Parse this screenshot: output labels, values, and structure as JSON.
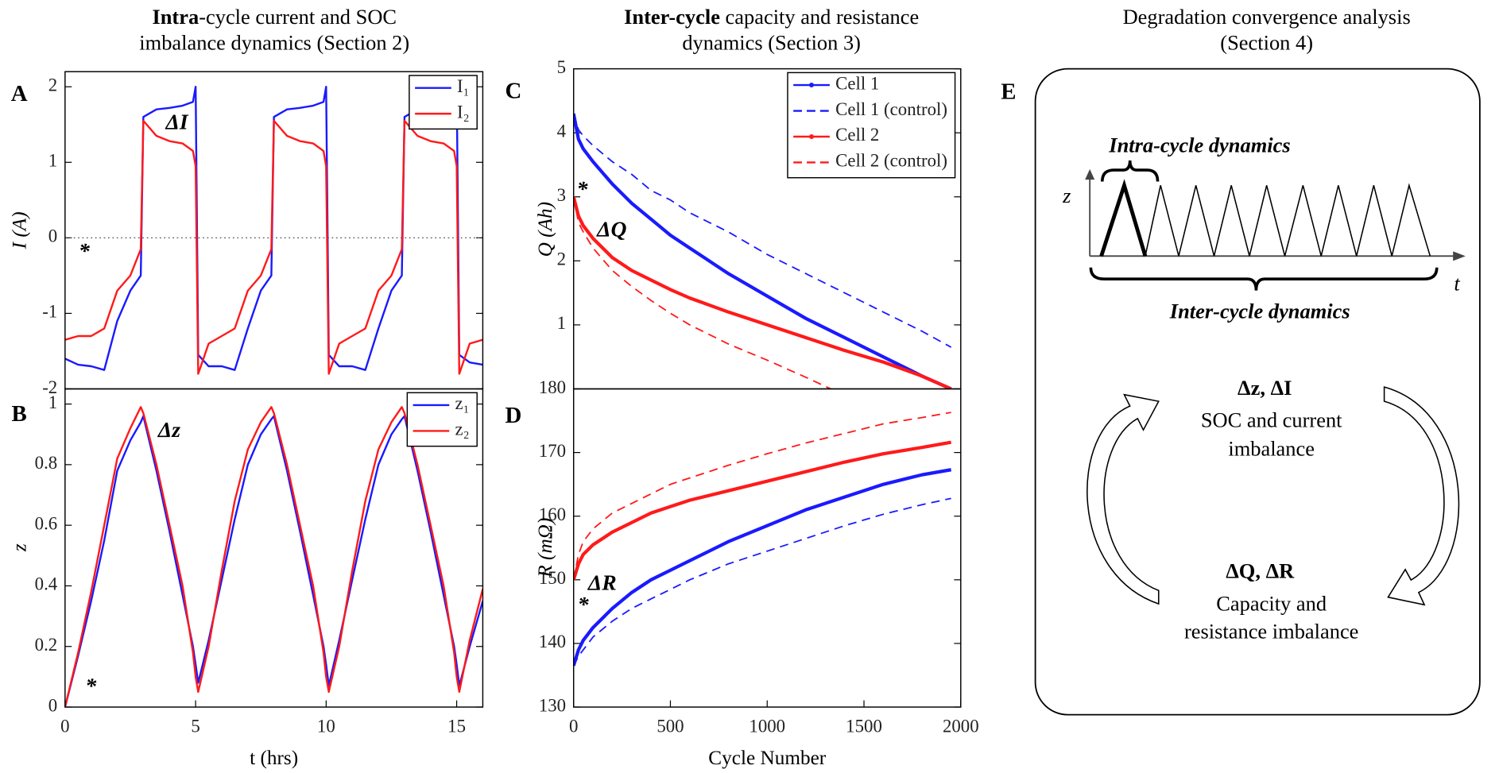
{
  "headers": [
    {
      "bold": "Intra",
      "rest": "-cycle current and SOC",
      "line2": "imbalance dynamics (Section 2)"
    },
    {
      "bold": "Inter-cycle",
      "rest": " capacity and resistance",
      "line2": "dynamics (Section 3)"
    },
    {
      "rest": "Degradation convergence analysis",
      "line2": "(Section 4)"
    }
  ],
  "chart_data": [
    {
      "panel": "A",
      "type": "line",
      "ylabel": "I (A)",
      "x": [
        0,
        0.5,
        1,
        1.5,
        2,
        2.5,
        2.9,
        3,
        3.5,
        4,
        4.5,
        4.9,
        5,
        5.1,
        5.5,
        6,
        6.5,
        7,
        7.5,
        7.9,
        8,
        8.5,
        9,
        9.5,
        9.9,
        10,
        10.1,
        10.5,
        11,
        11.5,
        12,
        12.5,
        12.9,
        13,
        13.5,
        14,
        14.5,
        14.9,
        15,
        15.1,
        15.5,
        16
      ],
      "series": [
        {
          "name": "I₁",
          "color": "#1a1aff",
          "linestyle": "solid",
          "linewidth": 2,
          "values": [
            -1.6,
            -1.68,
            -1.7,
            -1.75,
            -1.1,
            -0.7,
            -0.5,
            1.6,
            1.7,
            1.72,
            1.75,
            1.8,
            2.0,
            -1.55,
            -1.7,
            -1.7,
            -1.75,
            -1.2,
            -0.7,
            -0.5,
            1.6,
            1.7,
            1.72,
            1.75,
            1.8,
            2.0,
            -1.55,
            -1.7,
            -1.7,
            -1.75,
            -1.2,
            -0.7,
            -0.5,
            1.6,
            1.7,
            1.72,
            1.75,
            1.8,
            2.0,
            -1.55,
            -1.65,
            -1.68
          ]
        },
        {
          "name": "I₂",
          "color": "#ff1a1a",
          "linestyle": "solid",
          "linewidth": 2,
          "values": [
            -1.35,
            -1.3,
            -1.3,
            -1.2,
            -0.7,
            -0.5,
            -0.15,
            1.55,
            1.35,
            1.28,
            1.25,
            1.15,
            0.95,
            -1.8,
            -1.4,
            -1.3,
            -1.2,
            -0.7,
            -0.5,
            -0.15,
            1.55,
            1.35,
            1.28,
            1.25,
            1.15,
            0.95,
            -1.8,
            -1.4,
            -1.3,
            -1.2,
            -0.7,
            -0.5,
            -0.15,
            1.55,
            1.35,
            1.28,
            1.25,
            1.15,
            0.95,
            -1.8,
            -1.4,
            -1.35
          ]
        }
      ],
      "xlim": [
        0,
        16
      ],
      "ylim": [
        -2,
        2.2
      ],
      "yticks": [
        -2,
        -1,
        0,
        1,
        2
      ],
      "reference_line": 0,
      "legend": "upper right",
      "annotations": [
        "ΔI",
        "*"
      ]
    },
    {
      "panel": "B",
      "type": "line",
      "ylabel": "z",
      "xlabel": "t (hrs)",
      "x": [
        0,
        0.5,
        1,
        1.5,
        2,
        2.5,
        2.9,
        3,
        3.5,
        4,
        4.5,
        4.9,
        5,
        5.1,
        5.5,
        6,
        6.5,
        7,
        7.5,
        7.9,
        8,
        8.5,
        9,
        9.5,
        9.9,
        10,
        10.1,
        10.5,
        11,
        11.5,
        12,
        12.5,
        12.9,
        13,
        13.5,
        14,
        14.5,
        14.9,
        15,
        15.1,
        15.5,
        16
      ],
      "series": [
        {
          "name": "z₁",
          "color": "#1a1aff",
          "linestyle": "solid",
          "linewidth": 2,
          "values": [
            0,
            0.17,
            0.35,
            0.55,
            0.78,
            0.88,
            0.94,
            0.96,
            0.78,
            0.58,
            0.37,
            0.2,
            0.14,
            0.08,
            0.22,
            0.42,
            0.62,
            0.8,
            0.9,
            0.95,
            0.96,
            0.78,
            0.58,
            0.37,
            0.2,
            0.14,
            0.07,
            0.22,
            0.42,
            0.62,
            0.8,
            0.9,
            0.95,
            0.96,
            0.78,
            0.58,
            0.37,
            0.2,
            0.14,
            0.07,
            0.2,
            0.35
          ]
        },
        {
          "name": "z₂",
          "color": "#ff1a1a",
          "linestyle": "solid",
          "linewidth": 2,
          "values": [
            0,
            0.18,
            0.38,
            0.6,
            0.82,
            0.92,
            0.99,
            0.97,
            0.8,
            0.6,
            0.4,
            0.18,
            0.1,
            0.05,
            0.2,
            0.45,
            0.68,
            0.85,
            0.94,
            0.99,
            0.97,
            0.8,
            0.6,
            0.4,
            0.18,
            0.1,
            0.05,
            0.2,
            0.45,
            0.68,
            0.85,
            0.94,
            0.99,
            0.97,
            0.8,
            0.6,
            0.4,
            0.18,
            0.1,
            0.05,
            0.22,
            0.39
          ]
        }
      ],
      "xlim": [
        0,
        16
      ],
      "xticks": [
        0,
        5,
        10,
        15
      ],
      "ylim": [
        0,
        1.05
      ],
      "yticks": [
        0,
        0.2,
        0.4,
        0.6,
        0.8,
        1
      ],
      "legend": "upper right",
      "annotations": [
        "Δz",
        "*"
      ]
    },
    {
      "panel": "C",
      "type": "line",
      "ylabel": "Q (Ah)",
      "x": [
        0,
        25,
        50,
        100,
        200,
        300,
        400,
        500,
        600,
        800,
        1000,
        1200,
        1400,
        1600,
        1800,
        1950
      ],
      "series": [
        {
          "name": "Cell 1",
          "color": "#1a1aff",
          "linestyle": "solid",
          "linewidth": 3.5,
          "marker": "dot",
          "values": [
            4.3,
            3.9,
            3.75,
            3.55,
            3.2,
            2.9,
            2.65,
            2.4,
            2.2,
            1.8,
            1.45,
            1.1,
            0.8,
            0.5,
            0.2,
            0.0
          ]
        },
        {
          "name": "Cell 1 (control)",
          "color": "#1a1aff",
          "linestyle": "dashed",
          "linewidth": 1.5,
          "values": [
            4.3,
            4.05,
            3.95,
            3.8,
            3.55,
            3.35,
            3.1,
            2.95,
            2.75,
            2.45,
            2.1,
            1.8,
            1.5,
            1.2,
            0.9,
            0.65
          ]
        },
        {
          "name": "Cell 2",
          "color": "#ff1a1a",
          "linestyle": "solid",
          "linewidth": 3.5,
          "marker": "dot",
          "values": [
            3.0,
            2.7,
            2.55,
            2.35,
            2.05,
            1.85,
            1.7,
            1.55,
            1.42,
            1.2,
            1.0,
            0.8,
            0.6,
            0.42,
            0.2,
            0.0
          ]
        },
        {
          "name": "Cell 2 (control)",
          "color": "#ff1a1a",
          "linestyle": "dashed",
          "linewidth": 1.5,
          "values": [
            3.0,
            2.6,
            2.45,
            2.2,
            1.85,
            1.6,
            1.38,
            1.18,
            1.0,
            0.7,
            0.45,
            0.18,
            -0.1,
            null,
            null,
            null
          ]
        }
      ],
      "xlim": [
        0,
        2000
      ],
      "ylim": [
        0,
        5
      ],
      "yticks": [
        1,
        2,
        3,
        4,
        5
      ],
      "legend": "upper right",
      "annotations": [
        "*",
        "ΔQ"
      ]
    },
    {
      "panel": "D",
      "type": "line",
      "ylabel": "R (mΩ)",
      "xlabel": "Cycle Number",
      "x": [
        0,
        25,
        50,
        100,
        200,
        300,
        400,
        500,
        600,
        800,
        1000,
        1200,
        1400,
        1600,
        1800,
        1950
      ],
      "series": [
        {
          "name": "Cell 1",
          "color": "#1a1aff",
          "linestyle": "solid",
          "linewidth": 3.5,
          "values": [
            136.5,
            139,
            140.5,
            142.5,
            145.5,
            148,
            150,
            151.5,
            153,
            156,
            158.5,
            161,
            163,
            165,
            166.5,
            167.3
          ]
        },
        {
          "name": "Cell 1 (control)",
          "color": "#1a1aff",
          "linestyle": "dashed",
          "linewidth": 1.5,
          "values": [
            136.5,
            138,
            139,
            141,
            143.5,
            145.5,
            147,
            148.5,
            150,
            152.5,
            154.5,
            156.5,
            158.5,
            160.3,
            161.8,
            162.8
          ]
        },
        {
          "name": "Cell 2",
          "color": "#ff1a1a",
          "linestyle": "solid",
          "linewidth": 3.5,
          "values": [
            150,
            152.5,
            154,
            155.5,
            157.5,
            159,
            160.5,
            161.5,
            162.5,
            164,
            165.5,
            167,
            168.5,
            169.8,
            170.8,
            171.6
          ]
        },
        {
          "name": "Cell 2 (control)",
          "color": "#ff1a1a",
          "linestyle": "dashed",
          "linewidth": 1.5,
          "values": [
            150,
            154,
            156,
            158,
            160.5,
            162,
            163.5,
            165,
            166,
            168,
            169.8,
            171.5,
            173,
            174.5,
            175.5,
            176.3
          ]
        }
      ],
      "xlim": [
        0,
        2000
      ],
      "xticks": [
        0,
        500,
        1000,
        1500,
        2000
      ],
      "ylim": [
        130,
        180
      ],
      "yticks": [
        130,
        140,
        150,
        160,
        170,
        180
      ],
      "annotations": [
        "ΔR",
        "*"
      ]
    }
  ],
  "diagram": {
    "panel": "E",
    "intra_label": "Intra-cycle dynamics",
    "inter_label": "Inter-cycle dynamics",
    "y_axis": "z",
    "x_axis": "t",
    "top_node": {
      "title": "Δz, ΔI",
      "lines": [
        "SOC and current",
        "imbalance"
      ]
    },
    "bottom_node": {
      "title": "ΔQ, ΔR",
      "lines": [
        "Capacity and",
        "resistance imbalance"
      ]
    }
  }
}
